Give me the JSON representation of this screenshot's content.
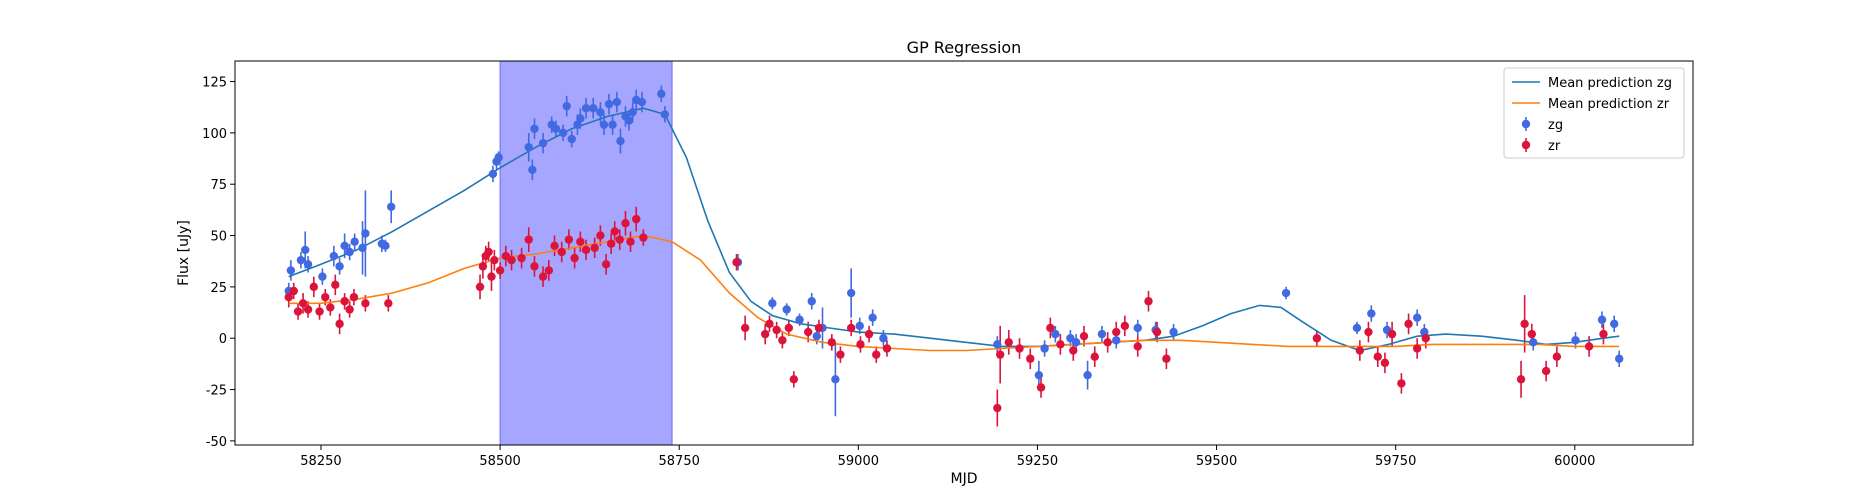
{
  "chart_data": {
    "type": "scatter",
    "title": "GP Regression",
    "xlabel": "MJD",
    "ylabel": "Flux [uJy]",
    "xlim": [
      58130,
      60165
    ],
    "ylim": [
      -52,
      135
    ],
    "xticks": [
      58250,
      58500,
      58750,
      59000,
      59250,
      59500,
      59750,
      60000
    ],
    "yticks": [
      -50,
      -25,
      0,
      25,
      50,
      75,
      100,
      125
    ],
    "legend_position": "top-right",
    "shaded_region": {
      "x_start": 58500,
      "x_end": 58740,
      "color": "#a6a6ff"
    },
    "series": [
      {
        "name": "Mean prediction zg",
        "kind": "line",
        "color": "#1f77b4",
        "x": [
          58205,
          58250,
          58300,
          58350,
          58400,
          58450,
          58500,
          58550,
          58600,
          58650,
          58700,
          58730,
          58760,
          58790,
          58820,
          58850,
          58880,
          58920,
          58960,
          59000,
          59050,
          59100,
          59150,
          59200,
          59250,
          59300,
          59350,
          59400,
          59440,
          59480,
          59520,
          59560,
          59590,
          59620,
          59660,
          59700,
          59740,
          59780,
          59820,
          59870,
          59920,
          59960,
          60000,
          60040,
          60062
        ],
        "y": [
          30,
          36,
          43,
          52,
          62,
          72,
          83,
          93,
          102,
          108,
          112,
          109,
          88,
          57,
          32,
          18,
          11,
          7,
          5,
          3,
          2,
          0,
          -2,
          -4,
          -4,
          -3,
          -2,
          -1,
          1,
          6,
          12,
          16,
          15,
          8,
          -1,
          -6,
          -3,
          1,
          2,
          1,
          -1,
          -3,
          -2,
          0,
          1
        ]
      },
      {
        "name": "Mean prediction zr",
        "kind": "line",
        "color": "#ff7f0e",
        "x": [
          58205,
          58250,
          58300,
          58350,
          58400,
          58450,
          58500,
          58550,
          58600,
          58650,
          58700,
          58740,
          58780,
          58820,
          58860,
          58900,
          58950,
          59000,
          59050,
          59100,
          59150,
          59200,
          59250,
          59300,
          59350,
          59400,
          59450,
          59500,
          59550,
          59600,
          59650,
          59700,
          59750,
          59800,
          59850,
          59900,
          59950,
          60000,
          60062
        ],
        "y": [
          17,
          17,
          19,
          22,
          27,
          34,
          39,
          41,
          44,
          47,
          50,
          47,
          38,
          22,
          10,
          2,
          -2,
          -4,
          -5,
          -6,
          -6,
          -5,
          -4,
          -3,
          -2,
          -1,
          -1,
          -2,
          -3,
          -4,
          -4,
          -4,
          -4,
          -3,
          -3,
          -3,
          -3,
          -4,
          -4
        ]
      },
      {
        "name": "zg",
        "kind": "errorbar",
        "color": "#4169e1",
        "x": [
          58205,
          58208,
          58222,
          58228,
          58232,
          58252,
          58268,
          58276,
          58283,
          58290,
          58297,
          58308,
          58312,
          58335,
          58340,
          58348,
          58490,
          58495,
          58498,
          58540,
          58545,
          58548,
          58560,
          58572,
          58578,
          58588,
          58593,
          58600,
          58608,
          58612,
          58620,
          58630,
          58640,
          58645,
          58652,
          58657,
          58663,
          58668,
          58675,
          58680,
          58685,
          58690,
          58698,
          58725,
          58730,
          58832,
          58880,
          58900,
          58918,
          58935,
          58942,
          58950,
          58968,
          58990,
          59002,
          59020,
          59035,
          59194,
          59252,
          59260,
          59275,
          59296,
          59304,
          59320,
          59340,
          59360,
          59390,
          59415,
          59440,
          59597,
          59696,
          59716,
          59738,
          59780,
          59790,
          59942,
          60001,
          60038,
          60055,
          60062
        ],
        "y": [
          23,
          33,
          38,
          43,
          36,
          30,
          40,
          35,
          45,
          42,
          47,
          44,
          51,
          46,
          45,
          64,
          80,
          86,
          88,
          93,
          82,
          102,
          95,
          104,
          102,
          100,
          113,
          97,
          104,
          107,
          112,
          112,
          110,
          104,
          114,
          104,
          115,
          96,
          108,
          106,
          110,
          116,
          115,
          119,
          109,
          37,
          17,
          14,
          9,
          18,
          1,
          5,
          -20,
          22,
          6,
          10,
          0,
          -3,
          -18,
          -5,
          2,
          0,
          -2,
          -18,
          2,
          -1,
          5,
          4,
          3,
          22,
          5,
          12,
          4,
          10,
          3,
          -2,
          -1,
          9,
          7,
          -10
        ],
        "err": [
          4,
          5,
          4,
          9,
          4,
          4,
          5,
          4,
          6,
          4,
          4,
          13,
          21,
          4,
          3,
          8,
          4,
          4,
          3,
          7,
          5,
          5,
          5,
          4,
          4,
          4,
          5,
          4,
          5,
          5,
          5,
          5,
          5,
          5,
          5,
          5,
          5,
          6,
          5,
          5,
          5,
          5,
          5,
          4,
          4,
          4,
          3,
          3,
          3,
          4,
          4,
          10,
          18,
          12,
          4,
          4,
          4,
          4,
          7,
          4,
          4,
          4,
          4,
          7,
          4,
          4,
          4,
          4,
          4,
          3,
          3,
          4,
          4,
          4,
          4,
          4,
          4,
          4,
          4,
          4
        ]
      },
      {
        "name": "zr",
        "kind": "errorbar",
        "color": "#dc143c",
        "x": [
          58205,
          58212,
          58218,
          58225,
          58232,
          58240,
          58248,
          58256,
          58263,
          58270,
          58276,
          58283,
          58290,
          58296,
          58312,
          58344,
          58472,
          58476,
          58480,
          58484,
          58488,
          58492,
          58500,
          58508,
          58516,
          58530,
          58540,
          58548,
          58560,
          58568,
          58576,
          58586,
          58596,
          58604,
          58612,
          58620,
          58632,
          58640,
          58648,
          58655,
          58660,
          58667,
          58675,
          58682,
          58690,
          58700,
          58830,
          58842,
          58870,
          58876,
          58886,
          58894,
          58903,
          58910,
          58930,
          58945,
          58963,
          58975,
          58990,
          59003,
          59015,
          59025,
          59040,
          59194,
          59198,
          59210,
          59225,
          59240,
          59255,
          59268,
          59282,
          59300,
          59315,
          59330,
          59348,
          59360,
          59372,
          59390,
          59405,
          59417,
          59430,
          59640,
          59700,
          59712,
          59725,
          59735,
          59745,
          59758,
          59768,
          59780,
          59792,
          59925,
          59930,
          59940,
          59960,
          59975,
          60020,
          60040
        ],
        "y": [
          20,
          23,
          13,
          17,
          14,
          25,
          13,
          20,
          15,
          26,
          7,
          18,
          14,
          20,
          17,
          17,
          25,
          35,
          40,
          42,
          30,
          38,
          33,
          40,
          38,
          39,
          48,
          35,
          30,
          33,
          45,
          42,
          48,
          39,
          47,
          43,
          44,
          50,
          36,
          46,
          52,
          48,
          56,
          47,
          58,
          49,
          37,
          5,
          2,
          7,
          4,
          -1,
          5,
          -20,
          3,
          5,
          -2,
          -8,
          5,
          -3,
          2,
          -8,
          -5,
          -34,
          -8,
          -2,
          -5,
          -10,
          -24,
          5,
          -3,
          -6,
          1,
          -9,
          -2,
          3,
          6,
          -4,
          18,
          3,
          -10,
          0,
          -6,
          3,
          -9,
          -12,
          2,
          -22,
          7,
          -5,
          0,
          -20,
          7,
          2,
          -16,
          -9,
          -4,
          2
        ],
        "err": [
          5,
          4,
          4,
          5,
          4,
          5,
          4,
          4,
          4,
          5,
          5,
          4,
          4,
          4,
          4,
          4,
          6,
          6,
          5,
          5,
          7,
          5,
          4,
          5,
          5,
          5,
          6,
          5,
          5,
          5,
          5,
          5,
          5,
          5,
          5,
          5,
          5,
          5,
          5,
          5,
          5,
          5,
          6,
          5,
          6,
          4,
          4,
          6,
          5,
          4,
          4,
          4,
          4,
          4,
          5,
          4,
          4,
          4,
          4,
          4,
          4,
          4,
          4,
          9,
          14,
          6,
          5,
          5,
          5,
          5,
          5,
          5,
          5,
          5,
          5,
          5,
          5,
          5,
          5,
          5,
          5,
          4,
          5,
          5,
          5,
          5,
          6,
          5,
          5,
          5,
          5,
          9,
          14,
          5,
          5,
          5,
          5,
          5
        ]
      }
    ]
  }
}
